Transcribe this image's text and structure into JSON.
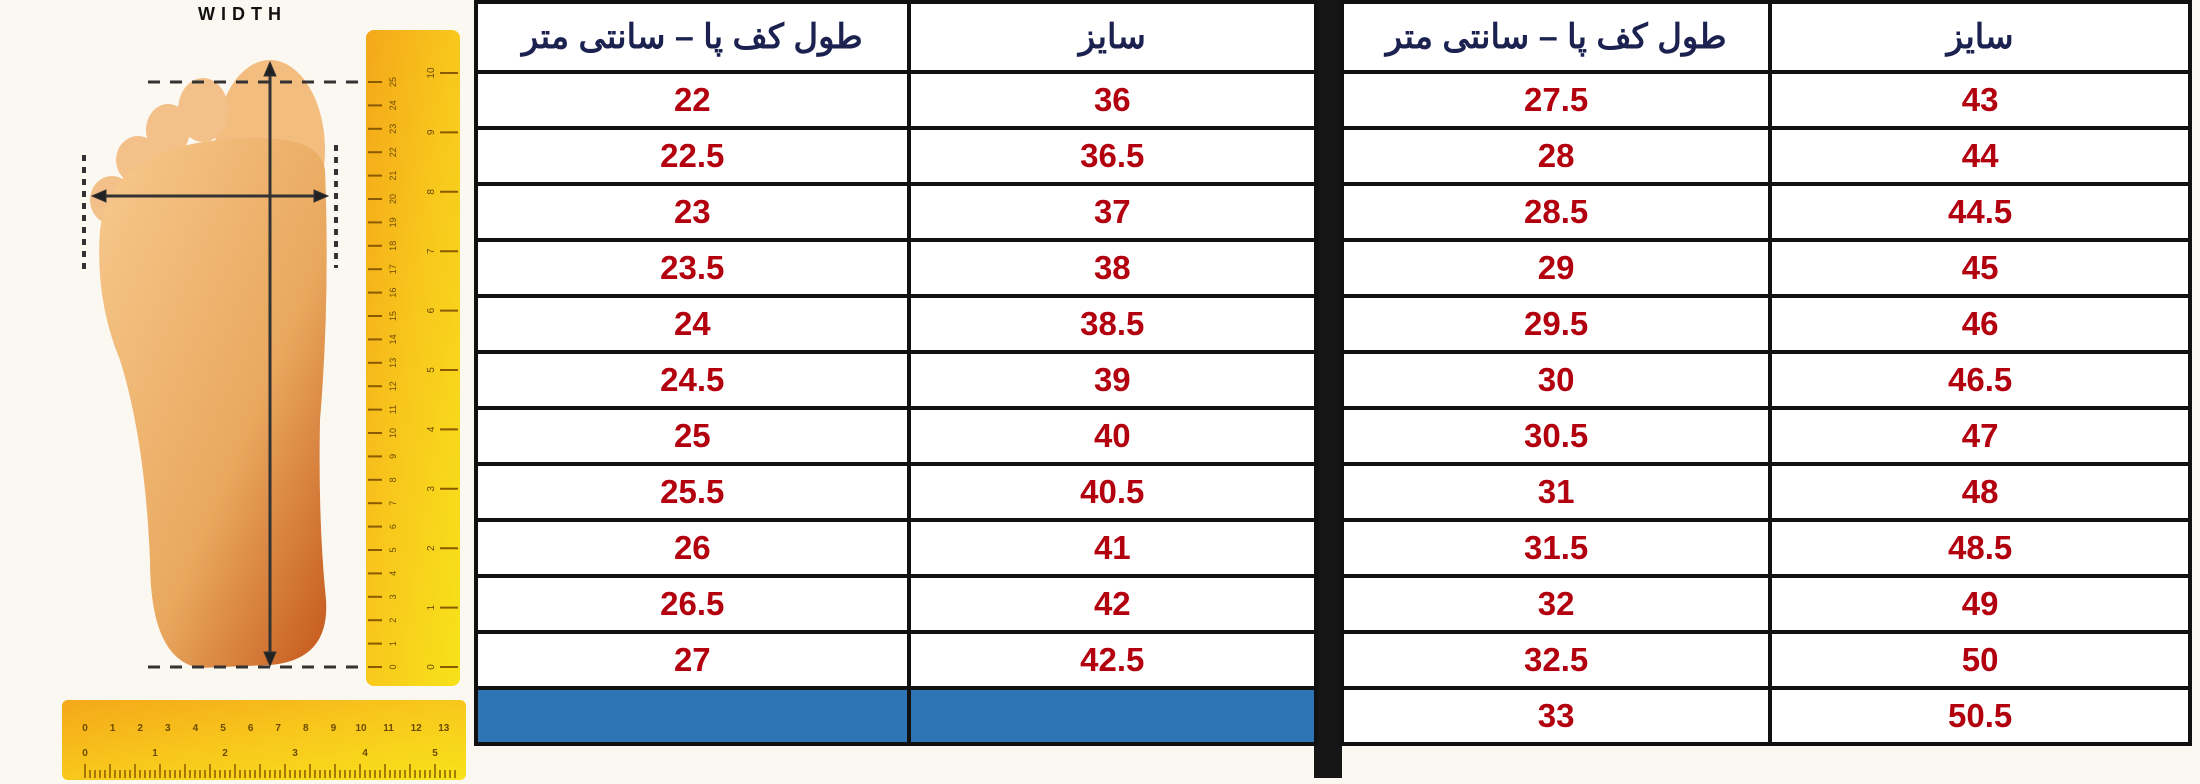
{
  "illustration": {
    "width_label": "WIDTH",
    "vertical_ruler_cm_ticks": [
      "0",
      "1",
      "2",
      "3",
      "4",
      "5",
      "6",
      "7",
      "8",
      "9",
      "10",
      "11",
      "12",
      "13",
      "14",
      "15",
      "16",
      "17",
      "18",
      "19",
      "20",
      "21",
      "22",
      "23",
      "24",
      "25"
    ],
    "vertical_ruler_inch_ticks": [
      "0",
      "1",
      "2",
      "3",
      "4",
      "5",
      "6",
      "7",
      "8",
      "9",
      "10"
    ],
    "horizontal_ruler_cm_ticks": [
      "0",
      "1",
      "2",
      "3",
      "4",
      "5",
      "6",
      "7",
      "8",
      "9",
      "10",
      "11",
      "12",
      "13"
    ],
    "horizontal_ruler_inch_ticks": [
      "0",
      "1",
      "2",
      "3",
      "4",
      "5"
    ]
  },
  "colors": {
    "header_text": "#1c2250",
    "value_text": "#b3000f",
    "empty_cell": "#2e75b6",
    "ruler": "#f6c21a",
    "foot": "#eaa65a"
  },
  "table_left": {
    "headers": {
      "length": "طول کف پا – سانتی متر",
      "size": "سایز"
    },
    "rows": [
      {
        "length": "22",
        "size": "36"
      },
      {
        "length": "22.5",
        "size": "36.5"
      },
      {
        "length": "23",
        "size": "37"
      },
      {
        "length": "23.5",
        "size": "38"
      },
      {
        "length": "24",
        "size": "38.5"
      },
      {
        "length": "24.5",
        "size": "39"
      },
      {
        "length": "25",
        "size": "40"
      },
      {
        "length": "25.5",
        "size": "40.5"
      },
      {
        "length": "26",
        "size": "41"
      },
      {
        "length": "26.5",
        "size": "42"
      },
      {
        "length": "27",
        "size": "42.5"
      }
    ]
  },
  "table_right": {
    "headers": {
      "length": "طول کف پا – سانتی متر",
      "size": "سایز"
    },
    "rows": [
      {
        "length": "27.5",
        "size": "43"
      },
      {
        "length": "28",
        "size": "44"
      },
      {
        "length": "28.5",
        "size": "44.5"
      },
      {
        "length": "29",
        "size": "45"
      },
      {
        "length": "29.5",
        "size": "46"
      },
      {
        "length": "30",
        "size": "46.5"
      },
      {
        "length": "30.5",
        "size": "47"
      },
      {
        "length": "31",
        "size": "48"
      },
      {
        "length": "31.5",
        "size": "48.5"
      },
      {
        "length": "32",
        "size": "49"
      },
      {
        "length": "32.5",
        "size": "50"
      },
      {
        "length": "33",
        "size": "50.5"
      }
    ]
  }
}
